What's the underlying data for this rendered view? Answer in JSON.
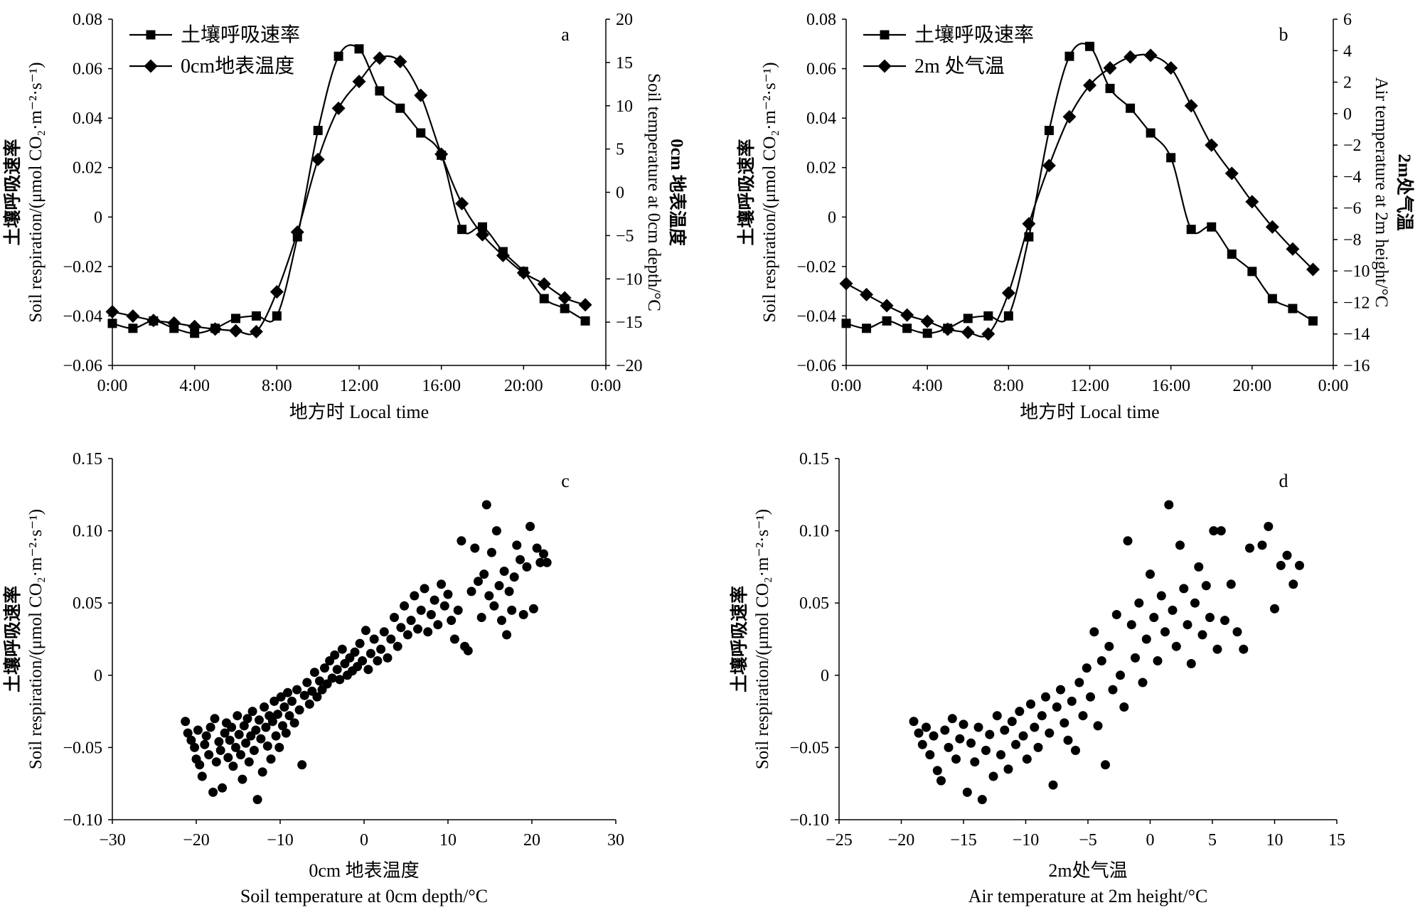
{
  "chart_data": [
    {
      "panel": "a",
      "type": "line",
      "x": [
        0,
        1,
        2,
        3,
        4,
        5,
        6,
        7,
        8,
        9,
        10,
        11,
        12,
        13,
        14,
        15,
        16,
        17,
        18,
        19,
        20,
        21,
        22,
        23
      ],
      "xticks": [
        "0:00",
        "4:00",
        "8:00",
        "12:00",
        "16:00",
        "20:00",
        "0:00"
      ],
      "xlim": [
        0,
        24
      ],
      "xlabel": "地方时 Local time",
      "ylabel_cn": "土壤呼吸速率",
      "ylabel_en": "Soil respiration/(μmol CO₂·m⁻²·s⁻¹)",
      "ylim": [
        -0.06,
        0.08
      ],
      "yticks": [
        "0.08",
        "0.06",
        "0.04",
        "0.02",
        "0",
        "−0.02",
        "−0.04",
        "−0.06"
      ],
      "y2label_cn": "0cm 地表温度",
      "y2label_en": "Soil temperature at 0cm depth/°C",
      "y2lim": [
        -20,
        20
      ],
      "y2ticks": [
        "20",
        "15",
        "10",
        "5",
        "0",
        "−5",
        "−10",
        "−15",
        "−20"
      ],
      "series": [
        {
          "name": "土壤呼吸速率",
          "marker": "square",
          "axis": "left",
          "values": [
            -0.043,
            -0.045,
            -0.042,
            -0.045,
            -0.047,
            -0.045,
            -0.041,
            -0.04,
            -0.04,
            -0.008,
            0.035,
            0.065,
            0.068,
            0.051,
            0.044,
            0.034,
            0.025,
            -0.005,
            -0.004,
            -0.014,
            -0.022,
            -0.033,
            -0.037,
            -0.042
          ]
        },
        {
          "name": "0cm地表温度",
          "marker": "diamond",
          "axis": "right",
          "values": [
            -13.8,
            -14.3,
            -14.8,
            -15.1,
            -15.5,
            -15.8,
            -16.0,
            -16.1,
            -11.5,
            -4.6,
            3.8,
            9.7,
            12.8,
            15.5,
            15.1,
            11.2,
            4.4,
            -1.3,
            -4.9,
            -7.3,
            -9.3,
            -10.6,
            -12.2,
            -13.0
          ]
        }
      ]
    },
    {
      "panel": "b",
      "type": "line",
      "x": [
        0,
        1,
        2,
        3,
        4,
        5,
        6,
        7,
        8,
        9,
        10,
        11,
        12,
        13,
        14,
        15,
        16,
        17,
        18,
        19,
        20,
        21,
        22,
        23
      ],
      "xticks": [
        "0:00",
        "4:00",
        "8:00",
        "12:00",
        "16:00",
        "20:00",
        "0:00"
      ],
      "xlim": [
        0,
        24
      ],
      "xlabel": "地方时 Local time",
      "ylabel_cn": "土壤呼吸速率",
      "ylabel_en": "Soil respiration/(μmol CO₂·m⁻²·s⁻¹)",
      "ylim": [
        -0.06,
        0.08
      ],
      "yticks": [
        "0.08",
        "0.06",
        "0.04",
        "0.02",
        "0",
        "−0.02",
        "−0.04",
        "−0.06"
      ],
      "y2label_cn": "2m处气温",
      "y2label_en": "Air temperature at 2m height/°C",
      "y2lim": [
        -16,
        6
      ],
      "y2ticks": [
        "6",
        "4",
        "2",
        "0",
        "−2",
        "−4",
        "−6",
        "−8",
        "−10",
        "−12",
        "−14",
        "−16"
      ],
      "series": [
        {
          "name": "土壤呼吸速率",
          "marker": "square",
          "axis": "left",
          "values": [
            -0.043,
            -0.045,
            -0.042,
            -0.045,
            -0.047,
            -0.045,
            -0.041,
            -0.04,
            -0.04,
            -0.008,
            0.035,
            0.065,
            0.069,
            0.052,
            0.044,
            0.034,
            0.024,
            -0.005,
            -0.004,
            -0.015,
            -0.022,
            -0.033,
            -0.037,
            -0.042
          ]
        },
        {
          "name": "2m 处气温",
          "marker": "diamond",
          "axis": "right",
          "values": [
            -10.8,
            -11.5,
            -12.2,
            -12.8,
            -13.2,
            -13.7,
            -13.9,
            -14.0,
            -11.4,
            -7.0,
            -3.3,
            -0.2,
            1.8,
            2.9,
            3.6,
            3.7,
            2.9,
            0.5,
            -2.0,
            -3.8,
            -5.6,
            -7.2,
            -8.6,
            -9.9
          ]
        }
      ]
    },
    {
      "panel": "c",
      "type": "scatter",
      "xlim": [
        -30,
        30
      ],
      "xticks": [
        "−30",
        "−20",
        "−10",
        "0",
        "10",
        "20",
        "30"
      ],
      "xlabel_cn": "0cm 地表温度",
      "xlabel_en": "Soil temperature at 0cm depth/°C",
      "ylim": [
        -0.1,
        0.15
      ],
      "yticks": [
        "0.15",
        "0.10",
        "0.05",
        "0",
        "−0.05",
        "−0.10"
      ],
      "ylabel_cn": "土壤呼吸速率",
      "ylabel_en": "Soil respiration/(μmol CO₂·m⁻²·s⁻¹)",
      "points": [
        [
          -21.3,
          -0.032
        ],
        [
          -21.0,
          -0.04
        ],
        [
          -20.6,
          -0.045
        ],
        [
          -20.2,
          -0.05
        ],
        [
          -20.0,
          -0.058
        ],
        [
          -19.8,
          -0.038
        ],
        [
          -19.6,
          -0.062
        ],
        [
          -19.3,
          -0.07
        ],
        [
          -19.0,
          -0.048
        ],
        [
          -18.8,
          -0.042
        ],
        [
          -18.5,
          -0.055
        ],
        [
          -18.3,
          -0.036
        ],
        [
          -18.0,
          -0.081
        ],
        [
          -17.8,
          -0.03
        ],
        [
          -17.6,
          -0.06
        ],
        [
          -17.3,
          -0.046
        ],
        [
          -17.1,
          -0.052
        ],
        [
          -16.9,
          -0.078
        ],
        [
          -16.6,
          -0.04
        ],
        [
          -16.4,
          -0.033
        ],
        [
          -16.2,
          -0.057
        ],
        [
          -16.0,
          -0.045
        ],
        [
          -15.8,
          -0.036
        ],
        [
          -15.6,
          -0.063
        ],
        [
          -15.3,
          -0.05
        ],
        [
          -15.1,
          -0.028
        ],
        [
          -14.9,
          -0.041
        ],
        [
          -14.7,
          -0.055
        ],
        [
          -14.5,
          -0.072
        ],
        [
          -14.3,
          -0.035
        ],
        [
          -14.1,
          -0.047
        ],
        [
          -13.9,
          -0.03
        ],
        [
          -13.7,
          -0.06
        ],
        [
          -13.5,
          -0.042
        ],
        [
          -13.3,
          -0.025
        ],
        [
          -13.1,
          -0.052
        ],
        [
          -12.9,
          -0.038
        ],
        [
          -12.7,
          -0.086
        ],
        [
          -12.5,
          -0.031
        ],
        [
          -12.3,
          -0.044
        ],
        [
          -12.1,
          -0.067
        ],
        [
          -11.9,
          -0.022
        ],
        [
          -11.7,
          -0.036
        ],
        [
          -11.5,
          -0.049
        ],
        [
          -11.3,
          -0.028
        ],
        [
          -11.1,
          -0.058
        ],
        [
          -10.9,
          -0.032
        ],
        [
          -10.7,
          -0.018
        ],
        [
          -10.5,
          -0.042
        ],
        [
          -10.3,
          -0.027
        ],
        [
          -10.1,
          -0.05
        ],
        [
          -9.9,
          -0.015
        ],
        [
          -9.7,
          -0.035
        ],
        [
          -9.5,
          -0.022
        ],
        [
          -9.3,
          -0.04
        ],
        [
          -9.1,
          -0.012
        ],
        [
          -8.9,
          -0.028
        ],
        [
          -8.6,
          -0.018
        ],
        [
          -8.3,
          -0.033
        ],
        [
          -8.0,
          -0.01
        ],
        [
          -7.7,
          -0.024
        ],
        [
          -7.4,
          -0.062
        ],
        [
          -7.1,
          -0.014
        ],
        [
          -6.8,
          -0.005
        ],
        [
          -6.5,
          -0.02
        ],
        [
          -6.2,
          -0.011
        ],
        [
          -5.9,
          0.002
        ],
        [
          -5.6,
          -0.015
        ],
        [
          -5.3,
          -0.004
        ],
        [
          -5.0,
          -0.01
        ],
        [
          -4.7,
          0.005
        ],
        [
          -4.4,
          -0.006
        ],
        [
          -4.1,
          0.01
        ],
        [
          -3.8,
          -0.002
        ],
        [
          -3.5,
          0.014
        ],
        [
          -3.2,
          0.004
        ],
        [
          -2.9,
          -0.003
        ],
        [
          -2.6,
          0.018
        ],
        [
          -2.3,
          0.008
        ],
        [
          -2.0,
          0.0
        ],
        [
          -1.7,
          0.012
        ],
        [
          -1.4,
          0.003
        ],
        [
          -1.1,
          0.016
        ],
        [
          -0.8,
          0.006
        ],
        [
          -0.5,
          0.022
        ],
        [
          -0.2,
          0.01
        ],
        [
          0.2,
          0.031
        ],
        [
          0.5,
          0.004
        ],
        [
          0.8,
          0.015
        ],
        [
          1.2,
          0.025
        ],
        [
          1.6,
          0.01
        ],
        [
          2.0,
          0.018
        ],
        [
          2.4,
          0.03
        ],
        [
          2.8,
          0.012
        ],
        [
          3.2,
          0.025
        ],
        [
          3.6,
          0.04
        ],
        [
          4.0,
          0.02
        ],
        [
          4.4,
          0.033
        ],
        [
          4.8,
          0.048
        ],
        [
          5.2,
          0.028
        ],
        [
          5.6,
          0.038
        ],
        [
          6.0,
          0.055
        ],
        [
          6.4,
          0.032
        ],
        [
          6.8,
          0.045
        ],
        [
          7.2,
          0.06
        ],
        [
          7.6,
          0.03
        ],
        [
          8.0,
          0.042
        ],
        [
          8.4,
          0.052
        ],
        [
          8.8,
          0.035
        ],
        [
          9.2,
          0.063
        ],
        [
          9.6,
          0.048
        ],
        [
          10.0,
          0.056
        ],
        [
          10.4,
          0.038
        ],
        [
          10.8,
          0.025
        ],
        [
          11.2,
          0.045
        ],
        [
          11.6,
          0.093
        ],
        [
          12.0,
          0.02
        ],
        [
          12.4,
          0.017
        ],
        [
          12.8,
          0.058
        ],
        [
          13.2,
          0.088
        ],
        [
          13.6,
          0.065
        ],
        [
          14.0,
          0.04
        ],
        [
          14.3,
          0.07
        ],
        [
          14.6,
          0.118
        ],
        [
          14.9,
          0.055
        ],
        [
          15.2,
          0.085
        ],
        [
          15.5,
          0.048
        ],
        [
          15.8,
          0.1
        ],
        [
          16.1,
          0.062
        ],
        [
          16.4,
          0.038
        ],
        [
          16.7,
          0.072
        ],
        [
          17.0,
          0.028
        ],
        [
          17.3,
          0.058
        ],
        [
          17.6,
          0.045
        ],
        [
          17.9,
          0.068
        ],
        [
          18.2,
          0.09
        ],
        [
          18.6,
          0.08
        ],
        [
          19.0,
          0.042
        ],
        [
          19.4,
          0.075
        ],
        [
          19.8,
          0.103
        ],
        [
          20.2,
          0.046
        ],
        [
          20.6,
          0.088
        ],
        [
          21.0,
          0.078
        ],
        [
          21.4,
          0.084
        ],
        [
          21.8,
          0.078
        ]
      ]
    },
    {
      "panel": "d",
      "type": "scatter",
      "xlim": [
        -25,
        15
      ],
      "xticks": [
        "−25",
        "−20",
        "−15",
        "−10",
        "−5",
        "0",
        "5",
        "10",
        "15"
      ],
      "xlabel_cn": "2m处气温",
      "xlabel_en": "Air temperature at 2m height/°C",
      "ylim": [
        -0.1,
        0.15
      ],
      "yticks": [
        "0.15",
        "0.10",
        "0.05",
        "0",
        "−0.05",
        "−0.10"
      ],
      "ylabel_cn": "土壤呼吸速率",
      "ylabel_en": "Soil respiration/(μmol CO₂·m⁻²·s⁻¹)",
      "points": [
        [
          -19.0,
          -0.032
        ],
        [
          -18.6,
          -0.04
        ],
        [
          -18.3,
          -0.048
        ],
        [
          -18.0,
          -0.036
        ],
        [
          -17.7,
          -0.055
        ],
        [
          -17.4,
          -0.042
        ],
        [
          -17.1,
          -0.066
        ],
        [
          -16.8,
          -0.073
        ],
        [
          -16.5,
          -0.038
        ],
        [
          -16.2,
          -0.05
        ],
        [
          -15.9,
          -0.03
        ],
        [
          -15.6,
          -0.058
        ],
        [
          -15.3,
          -0.044
        ],
        [
          -15.0,
          -0.034
        ],
        [
          -14.7,
          -0.081
        ],
        [
          -14.4,
          -0.047
        ],
        [
          -14.1,
          -0.06
        ],
        [
          -13.8,
          -0.036
        ],
        [
          -13.5,
          -0.086
        ],
        [
          -13.2,
          -0.052
        ],
        [
          -12.9,
          -0.041
        ],
        [
          -12.6,
          -0.07
        ],
        [
          -12.3,
          -0.028
        ],
        [
          -12.0,
          -0.055
        ],
        [
          -11.7,
          -0.038
        ],
        [
          -11.4,
          -0.065
        ],
        [
          -11.1,
          -0.032
        ],
        [
          -10.8,
          -0.048
        ],
        [
          -10.5,
          -0.025
        ],
        [
          -10.2,
          -0.042
        ],
        [
          -9.9,
          -0.058
        ],
        [
          -9.6,
          -0.02
        ],
        [
          -9.3,
          -0.036
        ],
        [
          -9.0,
          -0.05
        ],
        [
          -8.7,
          -0.028
        ],
        [
          -8.4,
          -0.015
        ],
        [
          -8.1,
          -0.04
        ],
        [
          -7.8,
          -0.076
        ],
        [
          -7.5,
          -0.022
        ],
        [
          -7.2,
          -0.01
        ],
        [
          -6.9,
          -0.033
        ],
        [
          -6.6,
          -0.045
        ],
        [
          -6.3,
          -0.018
        ],
        [
          -6.0,
          -0.052
        ],
        [
          -5.7,
          -0.005
        ],
        [
          -5.4,
          -0.028
        ],
        [
          -5.1,
          0.005
        ],
        [
          -4.8,
          -0.015
        ],
        [
          -4.5,
          0.03
        ],
        [
          -4.2,
          -0.035
        ],
        [
          -3.9,
          0.01
        ],
        [
          -3.6,
          -0.062
        ],
        [
          -3.3,
          0.02
        ],
        [
          -3.0,
          -0.01
        ],
        [
          -2.7,
          0.042
        ],
        [
          -2.4,
          0.0
        ],
        [
          -2.1,
          -0.022
        ],
        [
          -1.8,
          0.093
        ],
        [
          -1.5,
          0.035
        ],
        [
          -1.2,
          0.012
        ],
        [
          -0.9,
          0.05
        ],
        [
          -0.6,
          -0.005
        ],
        [
          -0.3,
          0.025
        ],
        [
          0.0,
          0.07
        ],
        [
          0.3,
          0.04
        ],
        [
          0.6,
          0.01
        ],
        [
          0.9,
          0.055
        ],
        [
          1.2,
          0.03
        ],
        [
          1.5,
          0.118
        ],
        [
          1.8,
          0.045
        ],
        [
          2.1,
          0.02
        ],
        [
          2.4,
          0.09
        ],
        [
          2.7,
          0.06
        ],
        [
          3.0,
          0.035
        ],
        [
          3.3,
          0.008
        ],
        [
          3.6,
          0.05
        ],
        [
          3.9,
          0.075
        ],
        [
          4.2,
          0.028
        ],
        [
          4.5,
          0.062
        ],
        [
          4.8,
          0.04
        ],
        [
          5.1,
          0.1
        ],
        [
          5.4,
          0.018
        ],
        [
          5.7,
          0.1
        ],
        [
          6.0,
          0.038
        ],
        [
          6.5,
          0.063
        ],
        [
          7.0,
          0.03
        ],
        [
          7.5,
          0.018
        ],
        [
          8.0,
          0.088
        ],
        [
          9.0,
          0.09
        ],
        [
          9.5,
          0.103
        ],
        [
          10.0,
          0.046
        ],
        [
          10.5,
          0.076
        ],
        [
          11.0,
          0.083
        ],
        [
          11.5,
          0.063
        ],
        [
          12.0,
          0.076
        ]
      ]
    }
  ],
  "legend": {
    "resp_label": "土壤呼吸速率",
    "soil_temp_label": "0cm地表温度",
    "air_temp_label": "2m 处气温"
  },
  "panel_labels": [
    "a",
    "b",
    "c",
    "d"
  ]
}
